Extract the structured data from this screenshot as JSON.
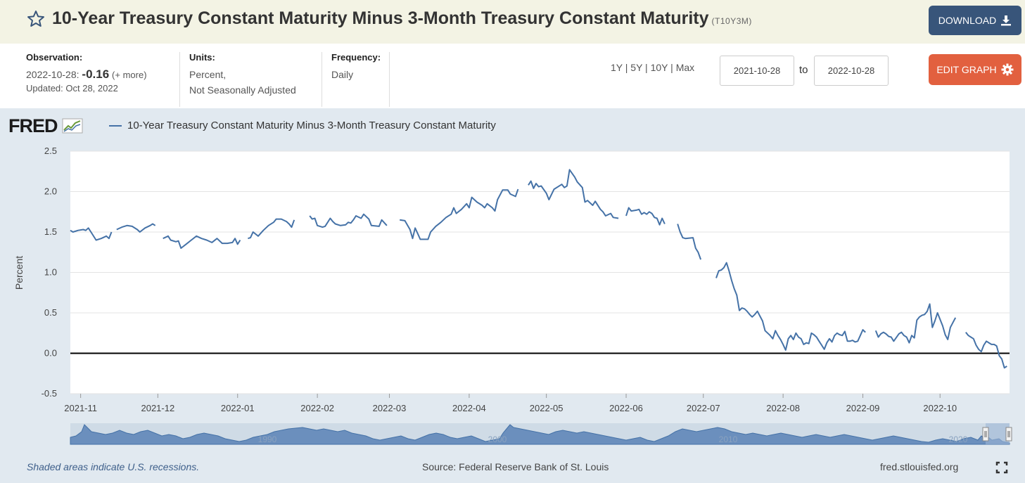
{
  "header": {
    "title": "10-Year Treasury Constant Maturity Minus 3-Month Treasury Constant Maturity",
    "series_id": "(T10Y3M)",
    "download_label": "DOWNLOAD",
    "edit_label": "EDIT GRAPH"
  },
  "meta": {
    "observation_label": "Observation:",
    "observation_date": "2022-10-28:",
    "observation_value": "-0.16",
    "observation_more": "(+ more)",
    "updated": "Updated: Oct 28, 2022",
    "units_label": "Units:",
    "units_line1": "Percent,",
    "units_line2": "Not Seasonally Adjusted",
    "frequency_label": "Frequency:",
    "frequency_value": "Daily"
  },
  "range": {
    "links": [
      "1Y",
      "5Y",
      "10Y",
      "Max"
    ],
    "start": "2021-10-28",
    "to_label": "to",
    "end": "2022-10-28"
  },
  "graph": {
    "logo": "FRED",
    "legend": "10-Year Treasury Constant Maturity Minus 3-Month Treasury Constant Maturity",
    "navigator_labels": [
      "1990",
      "2000",
      "2010",
      "2020"
    ]
  },
  "footer": {
    "recession_note": "Shaded areas indicate U.S. recessions.",
    "source": "Source: Federal Reserve Bank of St. Louis",
    "site": "fred.stlouisfed.org"
  },
  "colors": {
    "series": "#4572a7",
    "download_bg": "#38557a",
    "edit_bg": "#e2603f",
    "title_bar_bg": "#f3f3e4",
    "graph_bg": "#e1e9f0"
  },
  "chart_data": {
    "type": "line",
    "title": "10-Year Treasury Constant Maturity Minus 3-Month Treasury Constant Maturity",
    "xlabel": "",
    "ylabel": "Percent",
    "ylim": [
      -0.5,
      2.5
    ],
    "y_ticks": [
      "2.5",
      "2.0",
      "1.5",
      "1.0",
      "0.5",
      "0.0",
      "-0.5"
    ],
    "y_tick_values": [
      2.5,
      2.0,
      1.5,
      1.0,
      0.5,
      0.0,
      -0.5
    ],
    "x_ticks": [
      "2021-11",
      "2021-12",
      "2022-01",
      "2022-02",
      "2022-03",
      "2022-04",
      "2022-05",
      "2022-06",
      "2022-07",
      "2022-08",
      "2022-09",
      "2022-10"
    ],
    "x_tick_days": [
      4,
      34,
      65,
      96,
      124,
      155,
      185,
      216,
      246,
      277,
      308,
      338
    ],
    "x_range_days": [
      0,
      365
    ],
    "x_origin": "2021-10-28",
    "zero_line": 0.0,
    "series": [
      {
        "name": "T10Y3M",
        "segments": [
          [
            [
              0,
              1.52
            ],
            [
              1,
              1.5
            ],
            [
              3,
              1.52
            ],
            [
              5,
              1.53
            ],
            [
              6,
              1.52
            ],
            [
              7,
              1.55
            ],
            [
              8,
              1.5
            ],
            [
              10,
              1.4
            ],
            [
              12,
              1.42
            ],
            [
              14,
              1.45
            ],
            [
              15,
              1.42
            ],
            [
              16,
              1.5
            ]
          ],
          [
            [
              18,
              1.53
            ],
            [
              20,
              1.56
            ],
            [
              22,
              1.58
            ],
            [
              24,
              1.57
            ],
            [
              26,
              1.53
            ],
            [
              27,
              1.5
            ],
            [
              29,
              1.55
            ],
            [
              31,
              1.58
            ],
            [
              32,
              1.6
            ],
            [
              33,
              1.58
            ]
          ],
          [
            [
              36,
              1.42
            ],
            [
              38,
              1.45
            ],
            [
              39,
              1.4
            ],
            [
              41,
              1.38
            ],
            [
              42,
              1.39
            ],
            [
              43,
              1.3
            ],
            [
              45,
              1.35
            ],
            [
              47,
              1.4
            ],
            [
              49,
              1.45
            ],
            [
              51,
              1.42
            ],
            [
              53,
              1.4
            ],
            [
              55,
              1.37
            ],
            [
              57,
              1.42
            ],
            [
              59,
              1.36
            ],
            [
              61,
              1.36
            ],
            [
              63,
              1.37
            ],
            [
              64,
              1.42
            ],
            [
              65,
              1.35
            ],
            [
              66,
              1.4
            ]
          ],
          [
            [
              69,
              1.42
            ],
            [
              70,
              1.43
            ],
            [
              71,
              1.5
            ],
            [
              73,
              1.45
            ],
            [
              75,
              1.52
            ],
            [
              77,
              1.58
            ],
            [
              79,
              1.62
            ],
            [
              80,
              1.66
            ],
            [
              82,
              1.66
            ],
            [
              84,
              1.63
            ],
            [
              85,
              1.6
            ],
            [
              86,
              1.56
            ],
            [
              87,
              1.65
            ]
          ],
          [
            [
              93,
              1.7
            ],
            [
              94,
              1.66
            ],
            [
              95,
              1.67
            ],
            [
              96,
              1.58
            ],
            [
              98,
              1.56
            ],
            [
              99,
              1.57
            ],
            [
              100,
              1.62
            ],
            [
              101,
              1.67
            ],
            [
              102,
              1.63
            ],
            [
              103,
              1.6
            ],
            [
              105,
              1.58
            ],
            [
              107,
              1.59
            ],
            [
              108,
              1.62
            ],
            [
              109,
              1.61
            ],
            [
              110,
              1.65
            ],
            [
              111,
              1.7
            ],
            [
              113,
              1.67
            ],
            [
              114,
              1.72
            ],
            [
              116,
              1.66
            ],
            [
              117,
              1.58
            ],
            [
              120,
              1.57
            ],
            [
              121,
              1.65
            ],
            [
              123,
              1.58
            ]
          ],
          [
            [
              128,
              1.65
            ],
            [
              130,
              1.64
            ],
            [
              132,
              1.53
            ],
            [
              133,
              1.42
            ],
            [
              134,
              1.55
            ],
            [
              135,
              1.48
            ],
            [
              136,
              1.41
            ],
            [
              139,
              1.41
            ],
            [
              140,
              1.5
            ],
            [
              142,
              1.57
            ],
            [
              144,
              1.62
            ],
            [
              146,
              1.68
            ],
            [
              148,
              1.72
            ],
            [
              149,
              1.8
            ],
            [
              150,
              1.73
            ],
            [
              152,
              1.78
            ],
            [
              154,
              1.85
            ],
            [
              155,
              1.8
            ],
            [
              156,
              1.93
            ],
            [
              158,
              1.87
            ],
            [
              160,
              1.83
            ],
            [
              161,
              1.8
            ],
            [
              162,
              1.85
            ],
            [
              164,
              1.8
            ],
            [
              165,
              1.76
            ],
            [
              166,
              1.9
            ],
            [
              168,
              2.02
            ],
            [
              170,
              2.02
            ],
            [
              171,
              1.97
            ],
            [
              173,
              1.94
            ],
            [
              174,
              2.03
            ]
          ],
          [
            [
              178,
              2.08
            ],
            [
              179,
              2.13
            ],
            [
              180,
              2.04
            ],
            [
              181,
              2.1
            ],
            [
              182,
              2.06
            ],
            [
              183,
              2.07
            ],
            [
              185,
              1.98
            ],
            [
              186,
              1.9
            ],
            [
              188,
              2.03
            ],
            [
              191,
              2.09
            ],
            [
              192,
              2.05
            ],
            [
              193,
              2.07
            ],
            [
              194,
              2.27
            ],
            [
              196,
              2.18
            ],
            [
              197,
              2.12
            ],
            [
              199,
              2.05
            ],
            [
              200,
              1.87
            ],
            [
              201,
              1.89
            ],
            [
              203,
              1.83
            ],
            [
              204,
              1.88
            ],
            [
              206,
              1.78
            ],
            [
              207,
              1.75
            ],
            [
              208,
              1.7
            ],
            [
              210,
              1.73
            ],
            [
              211,
              1.68
            ],
            [
              213,
              1.67
            ]
          ],
          [
            [
              216,
              1.7
            ],
            [
              217,
              1.8
            ],
            [
              218,
              1.76
            ],
            [
              220,
              1.77
            ],
            [
              221,
              1.78
            ],
            [
              222,
              1.72
            ],
            [
              223,
              1.74
            ],
            [
              224,
              1.72
            ],
            [
              225,
              1.75
            ],
            [
              226,
              1.73
            ],
            [
              227,
              1.68
            ],
            [
              228,
              1.67
            ],
            [
              229,
              1.59
            ],
            [
              230,
              1.67
            ],
            [
              231,
              1.6
            ]
          ],
          [
            [
              236,
              1.6
            ],
            [
              237,
              1.5
            ],
            [
              238,
              1.43
            ],
            [
              239,
              1.42
            ],
            [
              242,
              1.43
            ],
            [
              243,
              1.3
            ],
            [
              244,
              1.25
            ],
            [
              245,
              1.16
            ]
          ],
          [
            [
              251,
              0.93
            ],
            [
              252,
              1.02
            ],
            [
              253,
              1.03
            ],
            [
              254,
              1.06
            ],
            [
              255,
              1.12
            ],
            [
              256,
              1.02
            ],
            [
              257,
              0.9
            ],
            [
              258,
              0.8
            ],
            [
              259,
              0.72
            ],
            [
              260,
              0.53
            ],
            [
              261,
              0.56
            ],
            [
              262,
              0.55
            ],
            [
              263,
              0.52
            ],
            [
              264,
              0.48
            ],
            [
              265,
              0.45
            ],
            [
              266,
              0.48
            ],
            [
              267,
              0.52
            ],
            [
              269,
              0.4
            ],
            [
              270,
              0.28
            ],
            [
              272,
              0.22
            ],
            [
              273,
              0.18
            ],
            [
              274,
              0.28
            ],
            [
              275,
              0.22
            ],
            [
              276,
              0.17
            ],
            [
              277,
              0.11
            ],
            [
              278,
              0.04
            ],
            [
              279,
              0.18
            ],
            [
              280,
              0.22
            ],
            [
              281,
              0.17
            ],
            [
              282,
              0.25
            ],
            [
              283,
              0.2
            ],
            [
              284,
              0.18
            ],
            [
              285,
              0.11
            ],
            [
              286,
              0.13
            ],
            [
              287,
              0.12
            ],
            [
              288,
              0.25
            ],
            [
              289,
              0.23
            ],
            [
              290,
              0.2
            ],
            [
              291,
              0.15
            ],
            [
              292,
              0.1
            ],
            [
              293,
              0.05
            ],
            [
              294,
              0.13
            ],
            [
              295,
              0.18
            ],
            [
              296,
              0.14
            ],
            [
              297,
              0.22
            ],
            [
              298,
              0.25
            ],
            [
              299,
              0.23
            ],
            [
              300,
              0.22
            ],
            [
              301,
              0.27
            ],
            [
              302,
              0.15
            ],
            [
              303,
              0.15
            ],
            [
              304,
              0.16
            ],
            [
              305,
              0.14
            ],
            [
              306,
              0.15
            ],
            [
              307,
              0.22
            ],
            [
              308,
              0.29
            ],
            [
              309,
              0.26
            ]
          ],
          [
            [
              313,
              0.28
            ],
            [
              314,
              0.2
            ],
            [
              315,
              0.24
            ],
            [
              316,
              0.26
            ],
            [
              317,
              0.24
            ],
            [
              318,
              0.21
            ],
            [
              319,
              0.2
            ],
            [
              320,
              0.15
            ],
            [
              322,
              0.24
            ],
            [
              323,
              0.26
            ],
            [
              324,
              0.22
            ],
            [
              325,
              0.2
            ],
            [
              326,
              0.13
            ],
            [
              327,
              0.22
            ],
            [
              328,
              0.19
            ],
            [
              329,
              0.41
            ],
            [
              330,
              0.45
            ],
            [
              331,
              0.47
            ],
            [
              332,
              0.48
            ],
            [
              333,
              0.52
            ],
            [
              334,
              0.61
            ],
            [
              335,
              0.32
            ],
            [
              336,
              0.4
            ],
            [
              337,
              0.5
            ],
            [
              339,
              0.34
            ],
            [
              340,
              0.23
            ],
            [
              341,
              0.17
            ],
            [
              342,
              0.32
            ],
            [
              343,
              0.38
            ],
            [
              344,
              0.44
            ]
          ],
          [
            [
              348,
              0.26
            ],
            [
              349,
              0.22
            ],
            [
              350,
              0.2
            ],
            [
              351,
              0.18
            ],
            [
              352,
              0.1
            ],
            [
              353,
              0.05
            ],
            [
              354,
              0.02
            ],
            [
              355,
              0.1
            ],
            [
              356,
              0.15
            ],
            [
              357,
              0.13
            ],
            [
              358,
              0.11
            ],
            [
              359,
              0.11
            ],
            [
              360,
              0.09
            ],
            [
              361,
              -0.03
            ],
            [
              362,
              -0.07
            ],
            [
              363,
              -0.18
            ],
            [
              364,
              -0.16
            ]
          ]
        ]
      }
    ]
  }
}
